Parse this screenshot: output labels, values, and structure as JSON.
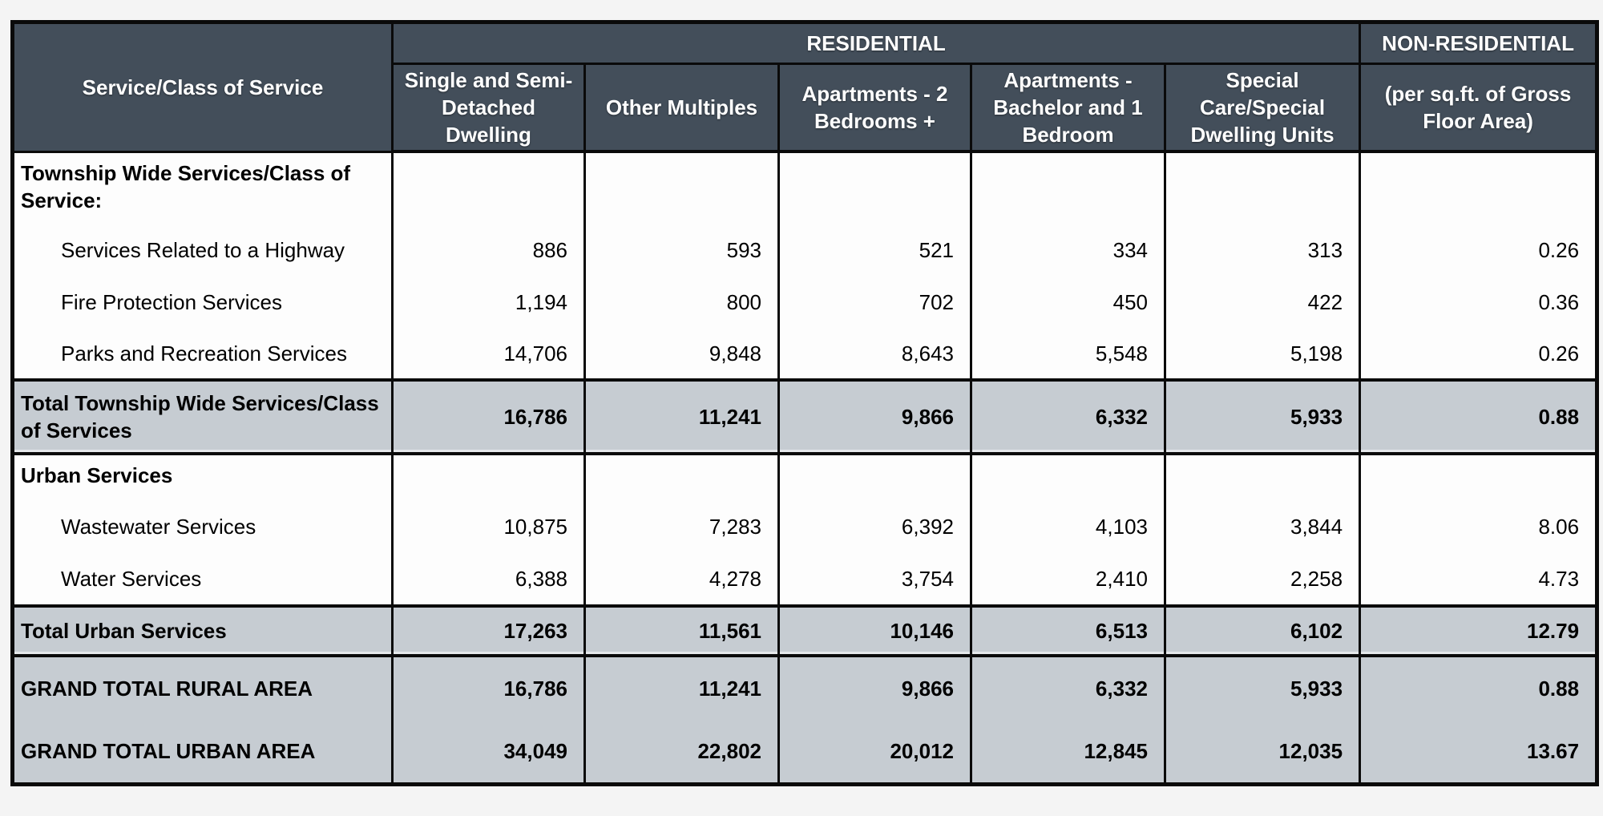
{
  "colors": {
    "header_bg": "#434e5a",
    "header_text": "#ffffff",
    "shaded_row_bg": "#c6ccd2",
    "border_color": "#0a0a0a",
    "page_bg": "#f4f4f4"
  },
  "table": {
    "header": {
      "service_class": "Service/Class of Service",
      "residential": "RESIDENTIAL",
      "non_residential": "NON-RESIDENTIAL",
      "subheaders": [
        "Single and Semi-Detached Dwelling",
        "Other Multiples",
        "Apartments - 2 Bedrooms +",
        "Apartments - Bachelor and 1 Bedroom",
        "Special Care/Special Dwelling Units",
        "(per sq.ft. of Gross Floor Area)"
      ]
    },
    "rows": [
      {
        "type": "section",
        "label": "Township Wide Services/Class of Service:",
        "values": [
          "",
          "",
          "",
          "",
          "",
          ""
        ]
      },
      {
        "type": "service",
        "label": "Services Related to a Highway",
        "values": [
          "886",
          "593",
          "521",
          "334",
          "313",
          "0.26"
        ]
      },
      {
        "type": "service",
        "label": "Fire Protection Services",
        "values": [
          "1,194",
          "800",
          "702",
          "450",
          "422",
          "0.36"
        ]
      },
      {
        "type": "service",
        "label": "Parks and Recreation Services",
        "values": [
          "14,706",
          "9,848",
          "8,643",
          "5,548",
          "5,198",
          "0.26"
        ]
      },
      {
        "type": "total",
        "label": "Total Township Wide Services/Class of Services",
        "values": [
          "16,786",
          "11,241",
          "9,866",
          "6,332",
          "5,933",
          "0.88"
        ]
      },
      {
        "type": "section",
        "label": "Urban Services",
        "values": [
          "",
          "",
          "",
          "",
          "",
          ""
        ]
      },
      {
        "type": "service",
        "label": "Wastewater Services",
        "values": [
          "10,875",
          "7,283",
          "6,392",
          "4,103",
          "3,844",
          "8.06"
        ]
      },
      {
        "type": "service",
        "label": "Water Services",
        "values": [
          "6,388",
          "4,278",
          "3,754",
          "2,410",
          "2,258",
          "4.73"
        ]
      },
      {
        "type": "total",
        "label": "Total Urban Services",
        "values": [
          "17,263",
          "11,561",
          "10,146",
          "6,513",
          "6,102",
          "12.79"
        ]
      },
      {
        "type": "grand",
        "label": "GRAND TOTAL RURAL AREA",
        "values": [
          "16,786",
          "11,241",
          "9,866",
          "6,332",
          "5,933",
          "0.88"
        ]
      },
      {
        "type": "grand",
        "label": "GRAND TOTAL URBAN AREA",
        "values": [
          "34,049",
          "22,802",
          "20,012",
          "12,845",
          "12,035",
          "13.67"
        ]
      }
    ]
  }
}
